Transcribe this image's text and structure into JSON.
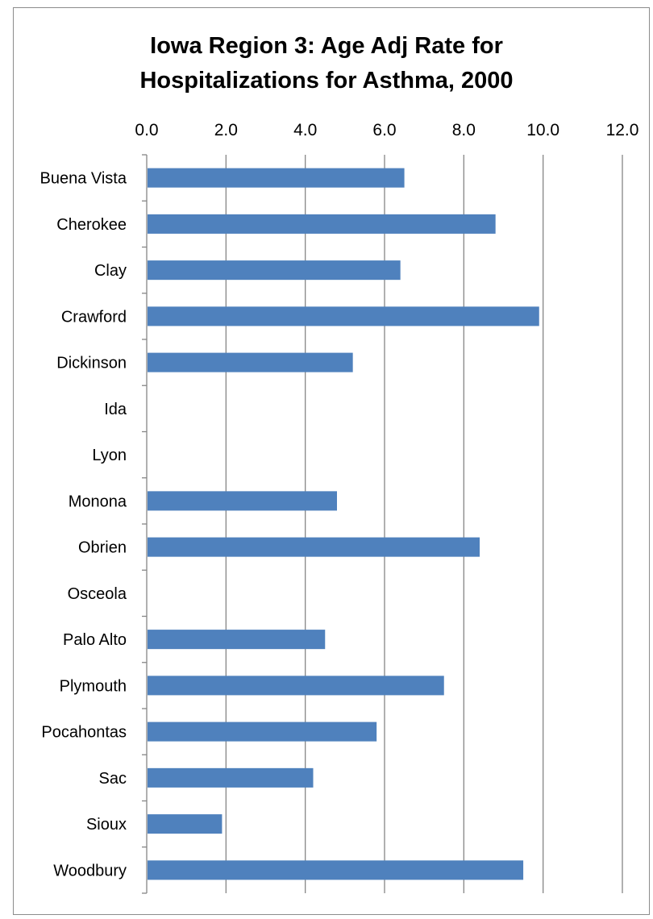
{
  "chart_data": {
    "type": "bar",
    "orientation": "horizontal",
    "title_lines": [
      "Iowa Region 3: Age Adj Rate for",
      "Hospitalizations for Asthma, 2000"
    ],
    "categories": [
      "Buena Vista",
      "Cherokee",
      "Clay",
      "Crawford",
      "Dickinson",
      "Ida",
      "Lyon",
      "Monona",
      "Obrien",
      "Osceola",
      "Palo Alto",
      "Plymouth",
      "Pocahontas",
      "Sac",
      "Sioux",
      "Woodbury"
    ],
    "values": [
      6.5,
      8.8,
      6.4,
      9.9,
      5.2,
      null,
      null,
      4.8,
      8.4,
      null,
      4.5,
      7.5,
      5.8,
      4.2,
      1.9,
      9.5
    ],
    "xlim": [
      0,
      12
    ],
    "x_ticks": [
      "0.0",
      "2.0",
      "4.0",
      "6.0",
      "8.0",
      "10.0",
      "12.0"
    ],
    "x_axis_position": "top",
    "grid": true,
    "legend": "none",
    "colors": {
      "bar": "#4f81bd",
      "grid": "#868686",
      "frame": "#8c8c8c"
    }
  }
}
